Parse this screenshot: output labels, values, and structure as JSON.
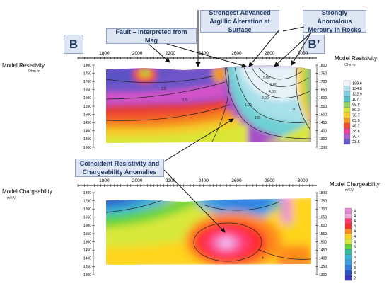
{
  "callouts": {
    "fault": "Fault – Interpreted from Mag",
    "argillic": "Strongest Advanced Argillic Alteration at Surface",
    "mercury": "Strongly Anomalous Mercury in Rocks",
    "coincident": "Coincident Resistivity and Chargeability Anomalies"
  },
  "section_labels": {
    "left": "B",
    "right": "B’"
  },
  "chart_data": [
    {
      "type": "heatmap",
      "title": "Model Resistivity",
      "ylabel": "Model Resistivity",
      "yunit": "Ohm-m",
      "legend_title": "Model Resistivity",
      "legend_unit": "Ohm-m",
      "x_ticks": [
        "1800",
        "2000",
        "2200",
        "2400",
        "2600",
        "2800",
        "3000"
      ],
      "xlim": [
        1640,
        3060
      ],
      "y_ticks": [
        "1800",
        "1750",
        "1700",
        "1650",
        "1600",
        "1550",
        "1500",
        "1450",
        "1400",
        "1350",
        "1300"
      ],
      "ylim": [
        1300,
        1800
      ],
      "legend_values": [
        "199.6",
        "134.8",
        "122.9",
        "107.7",
        "98.8",
        "89.3",
        "78.7",
        "63.9",
        "48.7",
        "38.6",
        "30.4",
        "23.6"
      ],
      "contour_labels": [
        "2.5",
        "1.5",
        "3.00",
        "4.00",
        "5.00",
        "2.00",
        "1.00",
        "150",
        "1.0"
      ]
    },
    {
      "type": "heatmap",
      "title": "Model Chargeability",
      "ylabel": "Model Chargeability",
      "yunit": "mV/V",
      "legend_title": "Model Chargeability",
      "legend_unit": "mV/V",
      "x_ticks": [
        "1800",
        "2000",
        "2200",
        "2400",
        "2600",
        "2800",
        "3000"
      ],
      "xlim": [
        1640,
        3060
      ],
      "y_ticks": [
        "1800",
        "1750",
        "1700",
        "1650",
        "1600",
        "1550",
        "1500",
        "1450",
        "1400",
        "1350",
        "1300"
      ],
      "ylim": [
        1300,
        1800
      ],
      "legend_values": [
        "4",
        "4",
        "4",
        "4",
        "4",
        "4",
        "4",
        "3",
        "3",
        "3",
        "3",
        "3",
        "3",
        "2"
      ],
      "contour_labels": [
        "4"
      ]
    }
  ],
  "colors": {
    "callout_bg": "#dfe6f3",
    "callout_border": "#8da2c6",
    "callout_text": "#1f3864"
  },
  "legend_colors": {
    "resistivity": [
      "#f2f6fb",
      "#b8e2ee",
      "#7fd1e3",
      "#55c2c6",
      "#8fd45e",
      "#d7e63a",
      "#f7cf2b",
      "#f59b21",
      "#ef4b2e",
      "#ec3f9a",
      "#a85bc9",
      "#6a5ac9"
    ],
    "chargeability": [
      "#ee88d8",
      "#f2a8e0",
      "#ff3a6e",
      "#ff2a2a",
      "#ff8a1a",
      "#ffd41a",
      "#d8e83a",
      "#5cd43a",
      "#2fc0a0",
      "#35b4dc",
      "#3aa0e6",
      "#2f7fe0",
      "#2a55c8",
      "#3a35b4"
    ]
  }
}
